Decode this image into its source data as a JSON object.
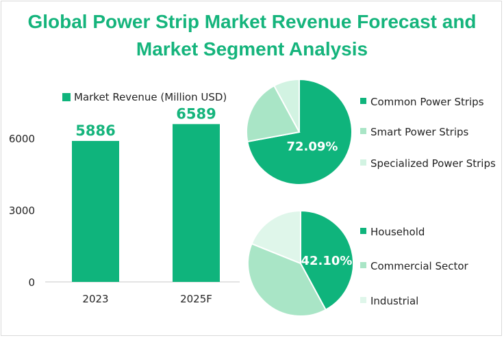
{
  "title_line1": "Global Power Strip Market Revenue Forecast and",
  "title_line2": "Market Segment Analysis",
  "chart_data": [
    {
      "type": "bar",
      "title": "",
      "legend": "Market Revenue (Million USD)",
      "categories": [
        "2023",
        "2025F"
      ],
      "values": [
        5886,
        6589
      ],
      "data_labels": [
        "5886",
        "6589"
      ],
      "y_ticks": [
        "0",
        "3000",
        "6000"
      ],
      "ylim": [
        0,
        9000
      ],
      "color": "#0fb47c"
    },
    {
      "type": "pie",
      "title": "",
      "labels": [
        "Common Power Strips",
        "Smart Power Strips",
        "Specialized Power Strips"
      ],
      "values": [
        72.09,
        20.0,
        7.91
      ],
      "data_label": "72.09%",
      "colors": [
        "#0fb47c",
        "#a9e5c6",
        "#d2f3e2"
      ]
    },
    {
      "type": "pie",
      "title": "",
      "labels": [
        "Household",
        "Commercial Sector",
        "Industrial"
      ],
      "values": [
        42.1,
        39.0,
        18.9
      ],
      "data_label": "42.10%",
      "colors": [
        "#0fb47c",
        "#a9e5c6",
        "#dff6ea"
      ]
    }
  ]
}
